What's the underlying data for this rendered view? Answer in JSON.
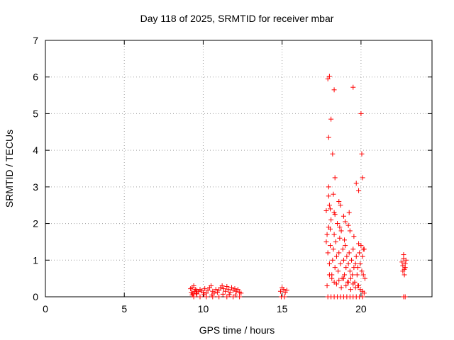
{
  "chart_data": {
    "type": "scatter",
    "title": "Day 118 of 2025, SRMTID for receiver mbar",
    "xlabel": "GPS time / hours",
    "ylabel": "SRMTID / TECUs",
    "xlim": [
      0,
      24.5
    ],
    "ylim": [
      0,
      7
    ],
    "xticks": [
      0,
      5,
      10,
      15,
      20
    ],
    "yticks": [
      0,
      1,
      2,
      3,
      4,
      5,
      6,
      7
    ],
    "grid": true,
    "marker": "+",
    "color": "#ff0000",
    "series": [
      {
        "name": "SRMTID",
        "x": [
          9.2,
          9.25,
          9.3,
          9.35,
          9.4,
          9.45,
          9.5,
          9.55,
          9.6,
          9.7,
          9.8,
          9.9,
          10.0,
          10.1,
          10.2,
          10.3,
          10.4,
          10.5,
          10.6,
          10.7,
          10.8,
          10.9,
          11.0,
          11.1,
          11.2,
          11.3,
          11.4,
          11.5,
          11.6,
          11.7,
          11.8,
          11.9,
          12.0,
          12.1,
          12.2,
          12.3,
          12.4,
          9.3,
          9.6,
          10.05,
          10.55,
          11.25,
          11.65,
          12.05,
          9.4,
          9.8,
          10.2,
          10.6,
          11.0,
          11.5,
          11.9,
          12.3,
          14.9,
          15.0,
          15.1,
          15.2,
          15.3,
          14.95,
          15.15,
          17.9,
          18.0,
          17.95,
          18.1,
          18.3,
          18.2,
          17.95,
          18.35,
          17.95,
          18.25,
          18.0,
          18.05,
          18.3,
          19.5,
          20.0,
          20.05,
          19.7,
          19.85,
          20.1,
          18.6,
          18.7,
          18.9,
          19.0,
          19.2,
          19.3,
          17.8,
          17.85,
          17.9,
          17.95,
          18.0,
          18.05,
          18.1,
          18.15,
          18.2,
          18.25,
          18.3,
          18.35,
          18.4,
          18.45,
          18.5,
          18.55,
          18.6,
          18.65,
          18.7,
          18.75,
          18.8,
          18.85,
          18.9,
          18.95,
          19.0,
          19.05,
          19.1,
          19.15,
          19.2,
          19.25,
          19.3,
          19.35,
          19.4,
          19.45,
          19.5,
          19.55,
          19.6,
          19.65,
          19.7,
          19.75,
          19.8,
          19.85,
          19.9,
          19.95,
          20.0,
          20.05,
          20.1,
          20.15,
          20.2,
          20.25,
          17.85,
          18.0,
          18.15,
          18.3,
          18.45,
          18.6,
          18.75,
          18.9,
          19.05,
          19.2,
          19.35,
          19.5,
          19.65,
          19.8,
          19.95,
          20.1,
          20.2,
          17.9,
          18.1,
          18.3,
          18.5,
          18.7,
          18.9,
          19.1,
          19.3,
          19.5,
          19.7,
          19.9,
          20.1,
          17.8,
          18.05,
          18.35,
          18.65,
          18.95,
          19.25,
          19.55,
          19.85,
          20.15,
          22.6,
          22.65,
          22.7,
          22.75,
          22.8,
          22.85,
          22.7,
          22.75,
          22.8,
          22.65,
          22.8,
          22.7
        ],
        "y": [
          0.22,
          0.12,
          0.25,
          0.08,
          0.3,
          0.15,
          0.2,
          0.1,
          0.18,
          0.14,
          0.2,
          0.16,
          0.12,
          0.22,
          0.1,
          0.18,
          0.25,
          0.3,
          0.15,
          0.1,
          0.2,
          0.12,
          0.18,
          0.25,
          0.3,
          0.22,
          0.15,
          0.28,
          0.2,
          0.12,
          0.25,
          0.18,
          0.22,
          0.15,
          0.2,
          0.12,
          0.1,
          0.05,
          0.08,
          0.06,
          0.05,
          0.07,
          0.06,
          0.05,
          0.0,
          0.0,
          0.0,
          0.0,
          0.0,
          0.0,
          0.0,
          0.0,
          0.15,
          0.25,
          0.2,
          0.12,
          0.18,
          0.0,
          0.0,
          5.95,
          6.02,
          4.35,
          4.85,
          5.65,
          3.9,
          3.0,
          3.25,
          2.75,
          2.8,
          2.5,
          2.4,
          2.3,
          5.72,
          5.0,
          3.9,
          3.1,
          2.9,
          3.25,
          2.6,
          2.5,
          2.2,
          2.05,
          1.95,
          1.8,
          1.5,
          1.7,
          1.2,
          1.9,
          0.9,
          1.4,
          2.1,
          0.6,
          1.0,
          1.3,
          1.7,
          0.8,
          1.5,
          1.1,
          2.0,
          0.7,
          1.2,
          1.6,
          0.9,
          1.8,
          0.5,
          1.3,
          1.0,
          0.6,
          1.4,
          0.8,
          1.1,
          0.4,
          0.9,
          1.2,
          0.7,
          0.5,
          1.0,
          0.6,
          1.3,
          0.8,
          0.4,
          0.9,
          1.1,
          0.6,
          0.8,
          0.3,
          1.2,
          0.9,
          1.4,
          0.7,
          1.1,
          0.6,
          1.3,
          0.5,
          0.3,
          0.6,
          0.5,
          0.4,
          0.35,
          0.45,
          0.25,
          0.5,
          0.3,
          0.4,
          0.2,
          0.35,
          0.25,
          0.3,
          0.2,
          0.15,
          0.1,
          0.0,
          0.0,
          0.0,
          0.0,
          0.0,
          0.0,
          0.0,
          0.0,
          0.0,
          0.0,
          0.0,
          0.0,
          2.35,
          1.85,
          2.25,
          1.9,
          1.55,
          2.3,
          1.65,
          1.45,
          1.3,
          0.95,
          0.85,
          1.05,
          0.75,
          0.9,
          1.0,
          1.15,
          0.6,
          0.8,
          0.7,
          0.0,
          0.0
        ]
      }
    ]
  }
}
